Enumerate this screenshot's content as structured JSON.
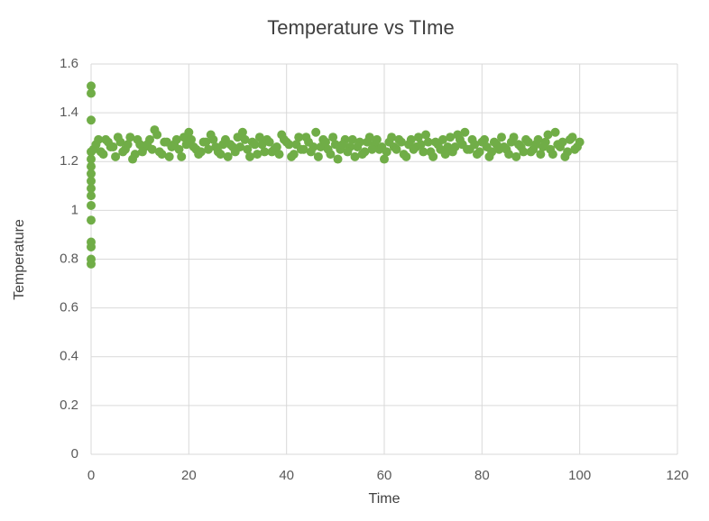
{
  "chart_data": {
    "type": "scatter",
    "title": "Temperature vs TIme",
    "x_label": "Time",
    "y_label": "Temperature",
    "color": "#70ad47",
    "grid": true,
    "xlim": [
      0,
      120
    ],
    "xticks": [
      0,
      20,
      40,
      60,
      80,
      100,
      120
    ],
    "ylim": [
      0,
      1.6
    ],
    "yticks": [
      0,
      0.2,
      0.4,
      0.6,
      0.8,
      1,
      1.2,
      1.4,
      1.6
    ],
    "x": [
      0,
      0,
      0,
      0,
      0,
      0,
      0,
      0,
      0,
      0,
      0,
      0,
      0,
      0,
      0,
      0,
      1,
      2,
      3,
      4,
      5,
      6,
      7,
      8,
      9,
      10,
      11,
      12,
      13,
      14,
      15,
      16,
      17,
      18,
      19,
      20,
      21,
      22,
      23,
      24,
      25,
      26,
      27,
      28,
      29,
      30,
      31,
      32,
      33,
      34,
      35,
      36,
      37,
      38,
      39,
      40,
      41,
      42,
      43,
      44,
      45,
      46,
      47,
      48,
      49,
      50,
      51,
      52,
      53,
      54,
      55,
      56,
      57,
      58,
      59,
      60,
      61,
      62,
      63,
      64,
      65,
      66,
      67,
      68,
      69,
      70,
      71,
      72,
      73,
      74,
      75,
      76,
      77,
      78,
      79,
      80,
      81,
      82,
      83,
      84,
      85,
      86,
      87,
      88,
      89,
      90,
      91,
      92,
      93,
      94,
      95,
      96,
      97,
      98,
      99,
      100,
      0.5,
      1.5,
      2.5,
      3.5,
      4.5,
      5.5,
      6.5,
      7.5,
      8.5,
      9.5,
      10.5,
      11.5,
      12.5,
      13.5,
      14.5,
      15.5,
      16.5,
      17.5,
      18.5,
      19.5,
      20.5,
      21.5,
      22.5,
      23.5,
      24.5,
      25.5,
      26.5,
      27.5,
      28.5,
      29.5,
      30.5,
      31.5,
      32.5,
      33.5,
      34.5,
      35.5,
      36.5,
      37.5,
      38.5,
      39.5,
      40.5,
      41.5,
      42.5,
      43.5,
      44.5,
      45.5,
      46.5,
      47.5,
      48.5,
      49.5,
      50.5,
      51.5,
      52.5,
      53.5,
      54.5,
      55.5,
      56.5,
      57.5,
      58.5,
      59.5,
      60.5,
      61.5,
      62.5,
      63.5,
      64.5,
      65.5,
      66.5,
      67.5,
      68.5,
      69.5,
      70.5,
      71.5,
      72.5,
      73.5,
      74.5,
      75.5,
      76.5,
      77.5,
      78.5,
      79.5,
      80.5,
      81.5,
      82.5,
      83.5,
      84.5,
      85.5,
      86.5,
      87.5,
      88.5,
      89.5,
      90.5,
      91.5,
      92.5,
      93.5,
      94.5,
      95.5,
      96.5,
      97.5,
      98.5,
      99.5
    ],
    "values": [
      0.78,
      0.8,
      0.85,
      0.87,
      0.96,
      1.02,
      1.06,
      1.09,
      1.12,
      1.15,
      1.18,
      1.21,
      1.24,
      1.37,
      1.48,
      1.51,
      1.27,
      1.24,
      1.29,
      1.26,
      1.22,
      1.28,
      1.25,
      1.3,
      1.23,
      1.27,
      1.26,
      1.29,
      1.33,
      1.24,
      1.28,
      1.22,
      1.27,
      1.25,
      1.3,
      1.32,
      1.26,
      1.23,
      1.28,
      1.25,
      1.29,
      1.24,
      1.27,
      1.22,
      1.26,
      1.3,
      1.32,
      1.25,
      1.28,
      1.23,
      1.27,
      1.29,
      1.24,
      1.26,
      1.31,
      1.28,
      1.22,
      1.27,
      1.25,
      1.3,
      1.24,
      1.32,
      1.26,
      1.28,
      1.23,
      1.27,
      1.25,
      1.29,
      1.26,
      1.22,
      1.28,
      1.24,
      1.3,
      1.27,
      1.25,
      1.21,
      1.28,
      1.26,
      1.29,
      1.23,
      1.27,
      1.25,
      1.3,
      1.24,
      1.28,
      1.22,
      1.27,
      1.29,
      1.26,
      1.24,
      1.31,
      1.27,
      1.25,
      1.29,
      1.23,
      1.28,
      1.26,
      1.24,
      1.27,
      1.3,
      1.25,
      1.28,
      1.22,
      1.26,
      1.29,
      1.24,
      1.27,
      1.23,
      1.28,
      1.25,
      1.32,
      1.26,
      1.22,
      1.29,
      1.25,
      1.28,
      1.25,
      1.29,
      1.23,
      1.28,
      1.26,
      1.3,
      1.24,
      1.27,
      1.21,
      1.29,
      1.24,
      1.27,
      1.25,
      1.31,
      1.23,
      1.28,
      1.26,
      1.29,
      1.22,
      1.27,
      1.29,
      1.25,
      1.24,
      1.28,
      1.31,
      1.26,
      1.23,
      1.29,
      1.27,
      1.24,
      1.26,
      1.29,
      1.22,
      1.27,
      1.3,
      1.24,
      1.28,
      1.25,
      1.23,
      1.29,
      1.27,
      1.23,
      1.3,
      1.25,
      1.28,
      1.26,
      1.22,
      1.29,
      1.25,
      1.3,
      1.21,
      1.27,
      1.24,
      1.29,
      1.26,
      1.23,
      1.28,
      1.25,
      1.29,
      1.26,
      1.24,
      1.3,
      1.25,
      1.28,
      1.22,
      1.29,
      1.26,
      1.27,
      1.31,
      1.24,
      1.28,
      1.25,
      1.23,
      1.3,
      1.26,
      1.29,
      1.32,
      1.25,
      1.27,
      1.24,
      1.29,
      1.22,
      1.28,
      1.25,
      1.26,
      1.23,
      1.3,
      1.27,
      1.24,
      1.28,
      1.25,
      1.29,
      1.26,
      1.31,
      1.23,
      1.27,
      1.28,
      1.24,
      1.3,
      1.26
    ]
  }
}
